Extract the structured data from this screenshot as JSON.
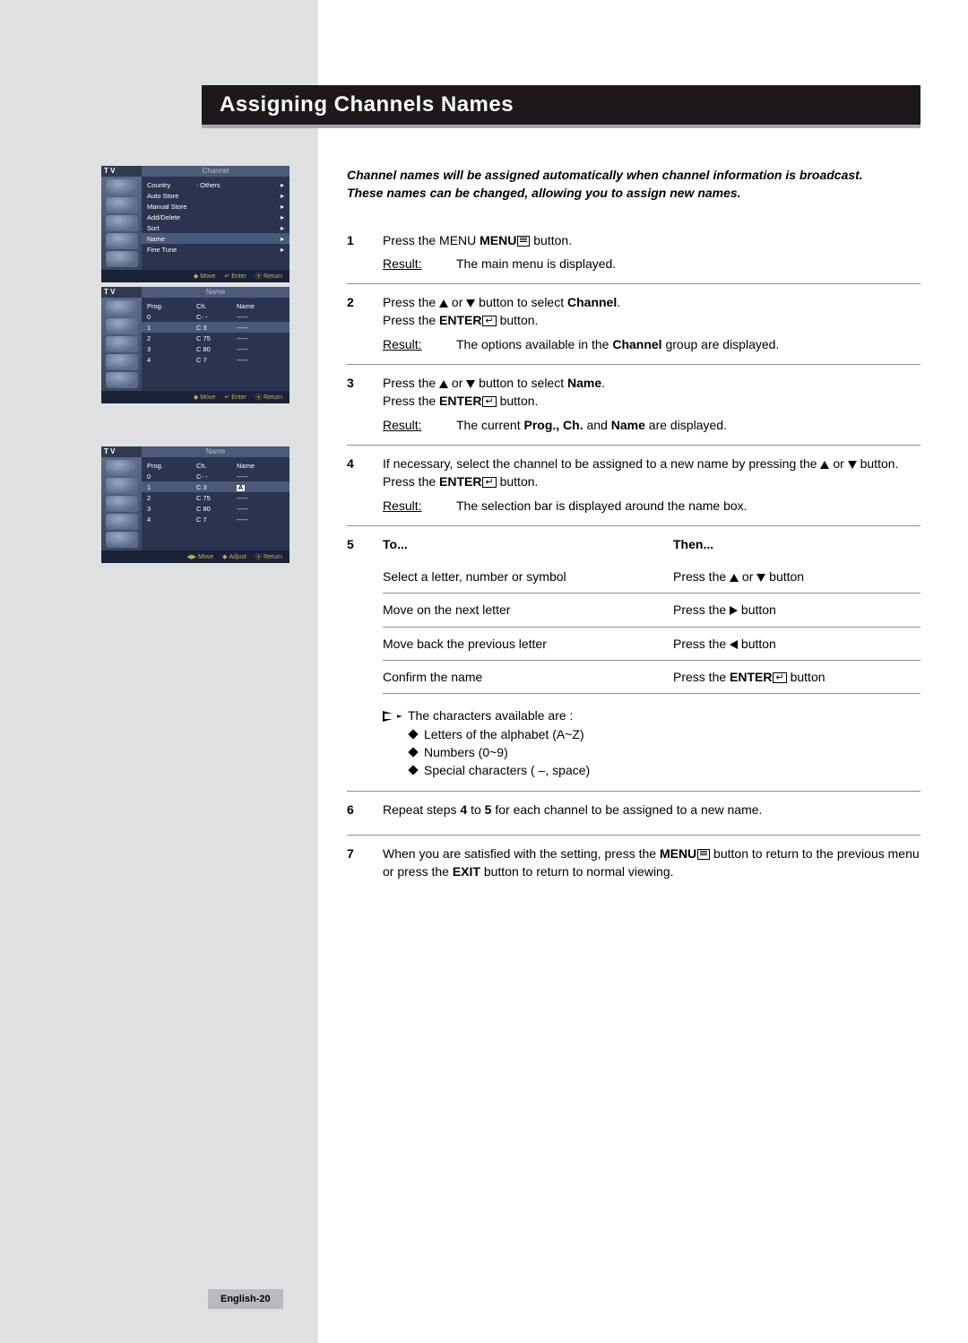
{
  "title": "Assigning Channels Names",
  "page_label": "English-20",
  "colors": {
    "left_margin": "#dfe0e2",
    "title_bg": "#1e181c",
    "title_text": "#ffffff",
    "rule": "#8e8e98",
    "osd_dark": "#2a3450",
    "osd_mid": "#4a5a78",
    "osd_head": "#2e3a52",
    "osd_foot": "#1a2238",
    "osd_foot_text": "#c5ac5a",
    "page_bg": "#ffffff"
  },
  "osd": {
    "menu1": {
      "tv": "T V",
      "header": "Channel",
      "items": [
        {
          "label": "Country",
          "value": ": Others"
        },
        {
          "label": "Auto Store",
          "value": ""
        },
        {
          "label": "Manual Store",
          "value": ""
        },
        {
          "label": "Add/Delete",
          "value": ""
        },
        {
          "label": "Sort",
          "value": ""
        },
        {
          "label": "Name",
          "value": "",
          "selected": true
        },
        {
          "label": "Fine Tune",
          "value": ""
        }
      ],
      "footer": [
        "Move",
        "Enter",
        "Return"
      ]
    },
    "menu2": {
      "tv": "T V",
      "header": "Name",
      "cols": [
        "Prog.",
        "Ch.",
        "Name"
      ],
      "rows": [
        {
          "prog": "0",
          "ch": "C- -",
          "name": "-----"
        },
        {
          "prog": "1",
          "ch": "C 3",
          "name": "-----",
          "selected": true
        },
        {
          "prog": "2",
          "ch": "C 75",
          "name": "-----"
        },
        {
          "prog": "3",
          "ch": "C 80",
          "name": "-----"
        },
        {
          "prog": "4",
          "ch": "C 7",
          "name": "-----"
        }
      ],
      "footer": [
        "Move",
        "Enter",
        "Return"
      ]
    },
    "menu3": {
      "tv": "T V",
      "header": "Name",
      "cols": [
        "Prog.",
        "Ch.",
        "Name"
      ],
      "rows": [
        {
          "prog": "0",
          "ch": "C- -",
          "name": "-----"
        },
        {
          "prog": "1",
          "ch": "C 3",
          "name": "A",
          "selected": true,
          "edit": true
        },
        {
          "prog": "2",
          "ch": "C 75",
          "name": "-----"
        },
        {
          "prog": "3",
          "ch": "C 80",
          "name": "-----"
        },
        {
          "prog": "4",
          "ch": "C 7",
          "name": "-----"
        }
      ],
      "footer": [
        "Move",
        "Adjust",
        "Return"
      ]
    }
  },
  "intro": {
    "line1": "Channel names will be assigned automatically when channel information is broadcast.",
    "line2": "These names can be changed, allowing you to assign new names."
  },
  "steps": {
    "s1": {
      "num": "1",
      "text": "Press the MENU",
      "text_after": " button.",
      "result": "The main menu is displayed."
    },
    "s2": {
      "num": "2",
      "l1a": "Press the ",
      "l1b": " or ",
      "l1c": " button to select ",
      "l1d": "Channel",
      "l1e": ".",
      "l2a": "Press the ",
      "l2b": "ENTER",
      "l2c": " button.",
      "result_a": "The options available in the ",
      "result_b": "Channel",
      "result_c": " group are displayed."
    },
    "s3": {
      "num": "3",
      "l1a": "Press the ",
      "l1b": " or ",
      "l1c": " button to select ",
      "l1d": "Name",
      "l1e": ".",
      "l2a": "Press the ",
      "l2b": "ENTER",
      "l2c": " button.",
      "result_a": "The current ",
      "result_b": "Prog., Ch.",
      "result_c": " and ",
      "result_d": "Name",
      "result_e": " are displayed."
    },
    "s4": {
      "num": "4",
      "l1a": "If necessary, select the channel to be assigned to a new name by pressing the ",
      "l1b": " or ",
      "l1c": " button.",
      "l2a": "Press the ",
      "l2b": "ENTER",
      "l2c": " button.",
      "result": "The selection bar is displayed around the name box."
    },
    "s5": {
      "num": "5",
      "to": "To...",
      "then": "Then...",
      "rows": [
        {
          "to": "Select a letter, number or symbol",
          "then_a": "Press the ",
          "then_b": " or ",
          "then_c": " button",
          "dir": "ud"
        },
        {
          "to": "Move on the next letter",
          "then_a": "Press the ",
          "then_c": " button",
          "dir": "r"
        },
        {
          "to": "Move back the previous letter",
          "then_a": "Press the ",
          "then_c": " button",
          "dir": "l"
        },
        {
          "to": "Confirm the name",
          "then_a": "Press the ",
          "then_b": "ENTER",
          "then_c": " button",
          "dir": "enter"
        }
      ],
      "note_head": "The characters available are :",
      "note_items": [
        "Letters of the alphabet (A~Z)",
        "Numbers (0~9)",
        "Special characters ( –, space)"
      ]
    },
    "s6": {
      "num": "6",
      "a": "Repeat steps ",
      "b": "4",
      "c": " to ",
      "d": "5",
      "e": " for each channel to be assigned to a new name."
    },
    "s7": {
      "num": "7",
      "a": "When you are satisfied with the setting, press the ",
      "b": "MENU",
      "c": " button to return to the previous menu or press the ",
      "d": "EXIT",
      "e": " button to return to normal viewing."
    }
  },
  "result_label": "Result:"
}
